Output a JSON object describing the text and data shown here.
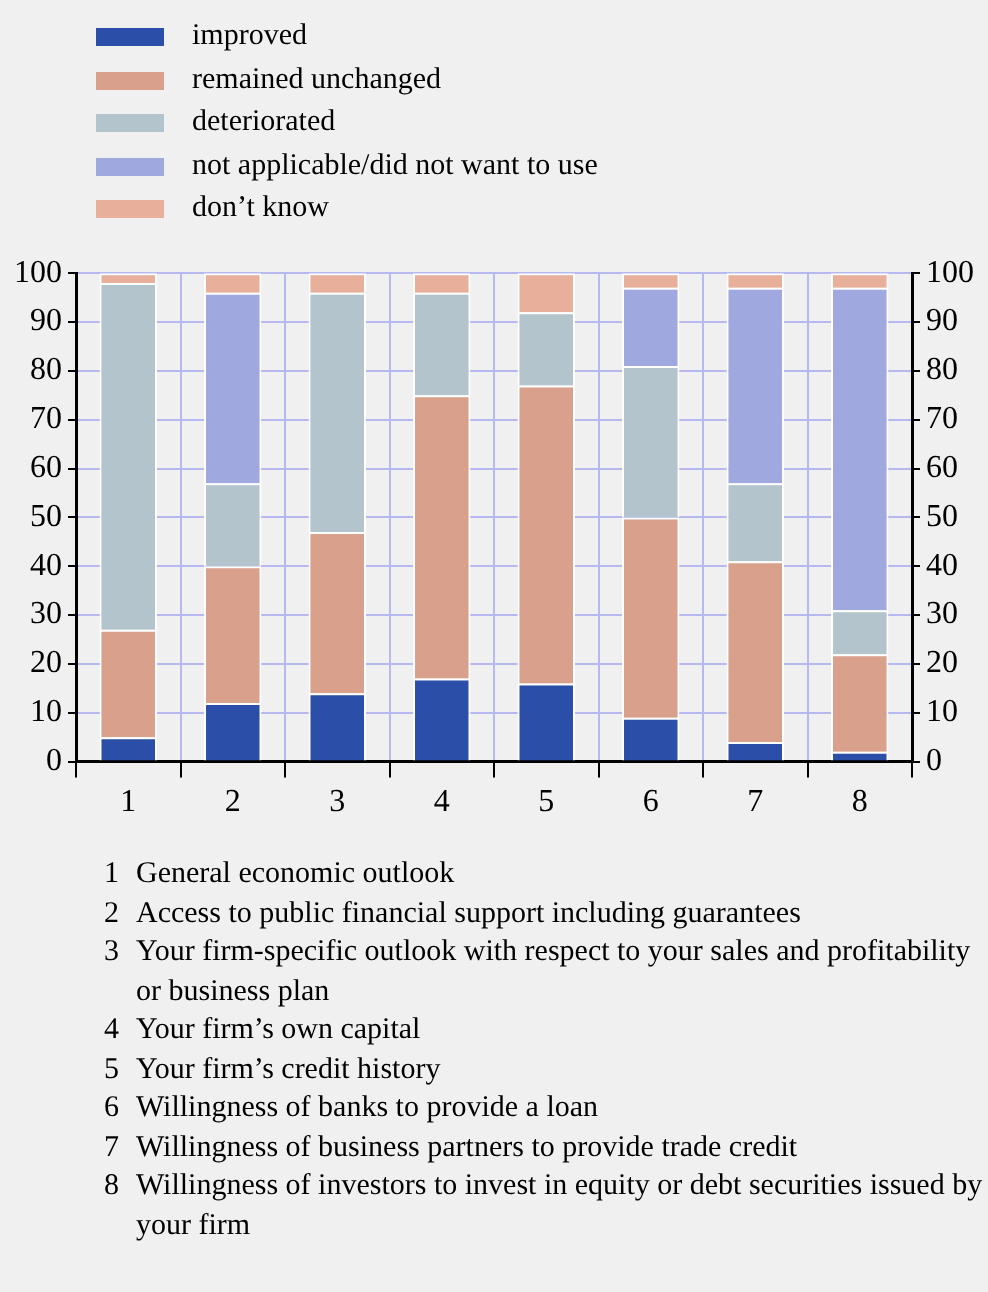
{
  "chart_data": {
    "type": "bar",
    "stacked": true,
    "categories": [
      "1",
      "2",
      "3",
      "4",
      "5",
      "6",
      "7",
      "8"
    ],
    "series": [
      {
        "name": "improved",
        "color": "#2b4ea8",
        "values": [
          5,
          12,
          14,
          17,
          16,
          9,
          4,
          2
        ]
      },
      {
        "name": "remained unchanged",
        "color": "#d9a08c",
        "values": [
          22,
          28,
          33,
          58,
          61,
          41,
          37,
          20
        ]
      },
      {
        "name": "deteriorated",
        "color": "#b3c4cc",
        "values": [
          71,
          17,
          49,
          21,
          15,
          31,
          16,
          9
        ]
      },
      {
        "name": "not applicable/did not want to use",
        "color": "#a0a8e0",
        "values": [
          0,
          39,
          0,
          0,
          0,
          16,
          40,
          66
        ]
      },
      {
        "name": "don’t know",
        "color": "#e8b09a",
        "values": [
          2,
          4,
          4,
          4,
          8,
          3,
          3,
          3
        ]
      }
    ],
    "ylim": [
      0,
      100
    ],
    "yticks": [
      0,
      10,
      20,
      30,
      40,
      50,
      60,
      70,
      80,
      90,
      100
    ],
    "y2lim": [
      0,
      100
    ],
    "y2ticks": [
      0,
      10,
      20,
      30,
      40,
      50,
      60,
      70,
      80,
      90,
      100
    ],
    "grid": true,
    "legend": "top left",
    "annotations": [
      "1 General economic outlook",
      "2 Access to public financial support including guarantees",
      "3 Your firm-specific outlook with respect to your sales and profitability or business plan",
      "4 Your firm’s own capital",
      "5 Your firm’s credit history",
      "6 Willingness of banks to provide a loan",
      "7 Willingness of business partners to provide trade credit",
      "8 Willingness of investors to invest in equity or debt securities issued by your firm"
    ]
  }
}
